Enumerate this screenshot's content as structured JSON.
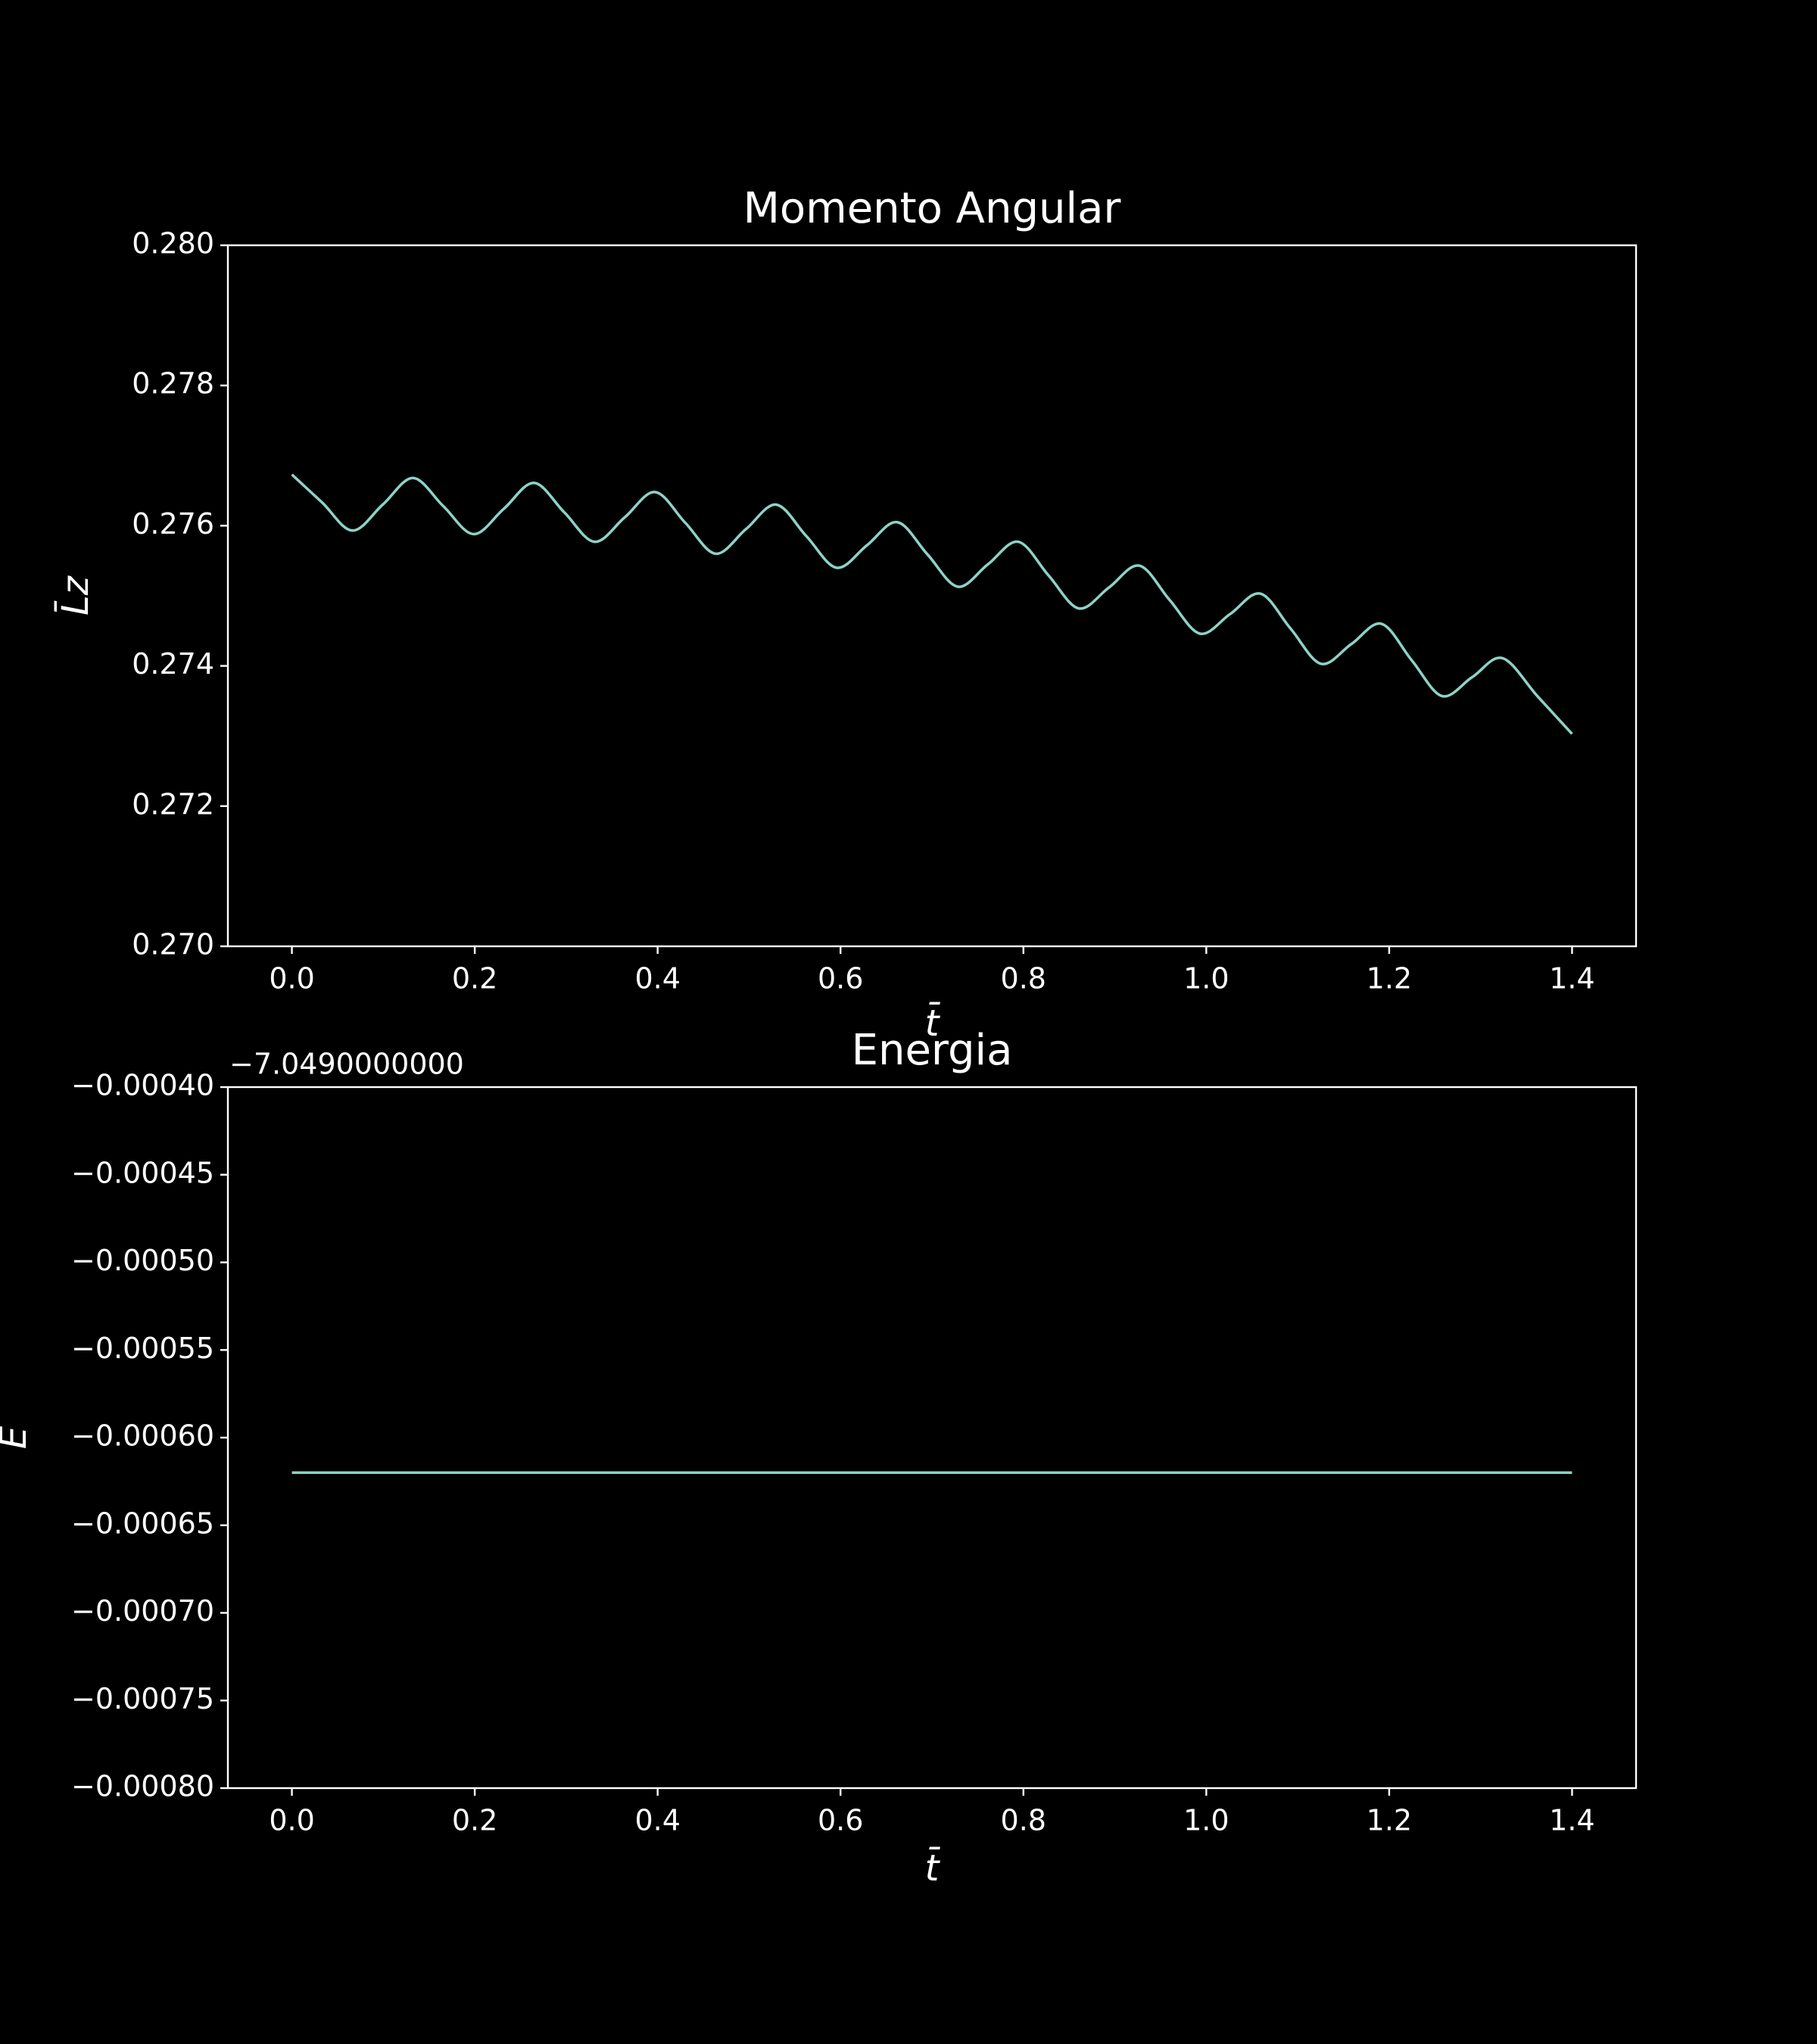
{
  "chart_data": [
    {
      "type": "line",
      "title": "Momento Angular",
      "xlabel": "t̄",
      "ylabel": "L̄z",
      "x": [
        0,
        0.0331,
        0.0662,
        0.0993,
        0.1324,
        0.1655,
        0.1986,
        0.2317,
        0.2648,
        0.2979,
        0.331,
        0.3641,
        0.3972,
        0.4303,
        0.4634,
        0.4965,
        0.5296,
        0.5627,
        0.5958,
        0.6289,
        0.662,
        0.6951,
        0.7282,
        0.7613,
        0.7944,
        0.8275,
        0.8606,
        0.8937,
        0.9268,
        0.9599,
        0.993,
        1.0261,
        1.0592,
        1.0923,
        1.1254,
        1.1585,
        1.1916,
        1.2247,
        1.2578,
        1.2909,
        1.324,
        1.362,
        1.4
      ],
      "series": [
        {
          "color": "#8dd3c7",
          "values": [
            0.27673,
            0.27633,
            0.27593,
            0.2763,
            0.27668,
            0.27628,
            0.27588,
            0.27624,
            0.27661,
            0.27619,
            0.27577,
            0.27612,
            0.27648,
            0.27604,
            0.2756,
            0.27595,
            0.2763,
            0.27585,
            0.2754,
            0.27572,
            0.27605,
            0.27559,
            0.27513,
            0.27545,
            0.27577,
            0.27529,
            0.27482,
            0.27512,
            0.27543,
            0.27494,
            0.27446,
            0.27474,
            0.27503,
            0.27453,
            0.27403,
            0.27431,
            0.2746,
            0.27408,
            0.27357,
            0.27384,
            0.27411,
            0.27357,
            0.27303
          ]
        }
      ],
      "xlim": [
        -0.07,
        1.47
      ],
      "ylim": [
        0.27,
        0.28
      ],
      "xticks": [
        {
          "value": 0,
          "label": "0.0"
        },
        0.2,
        0.4,
        0.6,
        0.8,
        {
          "value": 1,
          "label": "1.0"
        },
        1.2,
        1.4
      ],
      "yticks": [
        {
          "value": 0.27,
          "label": "0.270"
        },
        0.272,
        0.274,
        0.276,
        0.278,
        {
          "value": 0.28,
          "label": "0.280"
        }
      ]
    },
    {
      "type": "line",
      "title": "Energia",
      "xlabel": "t̄",
      "ylabel": "E",
      "offset_text": "−7.0490000000",
      "x": [
        0,
        1.4
      ],
      "series": [
        {
          "color": "#8dd3c7",
          "values": [
            -0.00062,
            -0.00062
          ]
        }
      ],
      "xlim": [
        -0.07,
        1.47
      ],
      "ylim": [
        -0.0008,
        -0.0004
      ],
      "xticks": [
        {
          "value": 0,
          "label": "0.0"
        },
        0.2,
        0.4,
        0.6,
        0.8,
        {
          "value": 1,
          "label": "1.0"
        },
        1.2,
        1.4
      ],
      "yticks": [
        {
          "value": -0.0008,
          "label": "−0.00080"
        },
        {
          "value": -0.00075,
          "label": "−0.00075"
        },
        {
          "value": -0.0007,
          "label": "−0.00070"
        },
        {
          "value": -0.00065,
          "label": "−0.00065"
        },
        {
          "value": -0.0006,
          "label": "−0.00060"
        },
        {
          "value": -0.00055,
          "label": "−0.00055"
        },
        {
          "value": -0.0005,
          "label": "−0.00050"
        },
        {
          "value": -0.00045,
          "label": "−0.00045"
        },
        {
          "value": -0.0004,
          "label": "−0.00040"
        }
      ]
    }
  ]
}
